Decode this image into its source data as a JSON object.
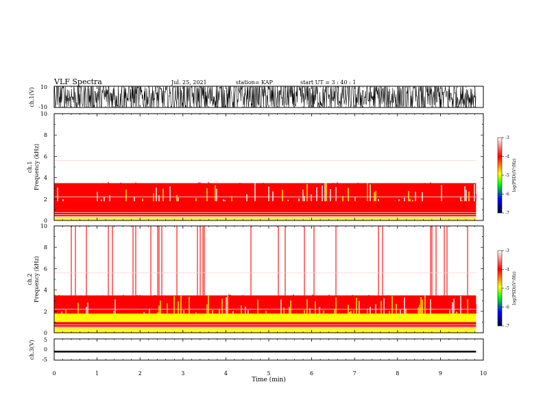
{
  "header": {
    "title": "VLF Spectra",
    "date": "Jul. 25, 2021",
    "station": "station= KAP",
    "start": "start  UT =   3 : 40 : 1"
  },
  "colorbar": {
    "label": "log(PSD)(V²/Hz)",
    "ticks": [
      "-3",
      "-4",
      "-5",
      "-6",
      "-7"
    ],
    "stops": [
      "#ffffff",
      "#ff0000",
      "#ffff00",
      "#00ff00",
      "#0000ff",
      "#000033"
    ]
  },
  "chart_data": [
    {
      "type": "line",
      "name": "ch1-waveform",
      "ylabel": "ch.1(V)",
      "yticks": [
        "10",
        "-10"
      ],
      "ylim": [
        -10,
        10
      ],
      "xlim": [
        0,
        10
      ],
      "description_values": {
        "min": -10,
        "max": 10
      }
    },
    {
      "type": "heatmap",
      "name": "ch1-spectrogram",
      "ylabel": "ch.1\nFrequency (kHz)",
      "yticks": [
        "0",
        "2",
        "4",
        "6",
        "8",
        "10"
      ],
      "ylim": [
        0,
        10
      ],
      "xlim": [
        0,
        10
      ],
      "data_end_min": 9.83,
      "bands": [
        {
          "from": 0,
          "to": 0.4,
          "level": -5.0
        },
        {
          "from": 0.4,
          "to": 1.0,
          "level": -4.6
        },
        {
          "from": 1.0,
          "to": 1.8,
          "level": -4.2
        },
        {
          "from": 1.8,
          "to": 3.5,
          "level": -4.4
        },
        {
          "from": 3.5,
          "to": 10,
          "level": -3.2
        }
      ]
    },
    {
      "type": "heatmap",
      "name": "ch2-spectrogram",
      "ylabel": "ch.2\nFrequency (kHz)",
      "yticks": [
        "0",
        "2",
        "4",
        "6",
        "8",
        "10"
      ],
      "ylim": [
        0,
        10
      ],
      "xlim": [
        0,
        10
      ],
      "data_end_min": 9.83,
      "bands": [
        {
          "from": 0,
          "to": 0.5,
          "level": -5.2
        },
        {
          "from": 0.5,
          "to": 1.0,
          "level": -4.8
        },
        {
          "from": 1.0,
          "to": 1.8,
          "level": -5.2
        },
        {
          "from": 1.8,
          "to": 3.5,
          "level": -4.5
        },
        {
          "from": 3.5,
          "to": 10,
          "level": -3.6
        }
      ]
    },
    {
      "type": "line",
      "name": "ch3-waveform",
      "ylabel": "ch.3(V)",
      "yticks": [
        "5",
        "0",
        "-5"
      ],
      "ylim": [
        -5,
        5
      ],
      "xlim": [
        0,
        10
      ],
      "xlabel": "Time (min)",
      "xticks": [
        "0",
        "1",
        "2",
        "3",
        "4",
        "5",
        "6",
        "7",
        "8",
        "9",
        "10"
      ]
    }
  ]
}
